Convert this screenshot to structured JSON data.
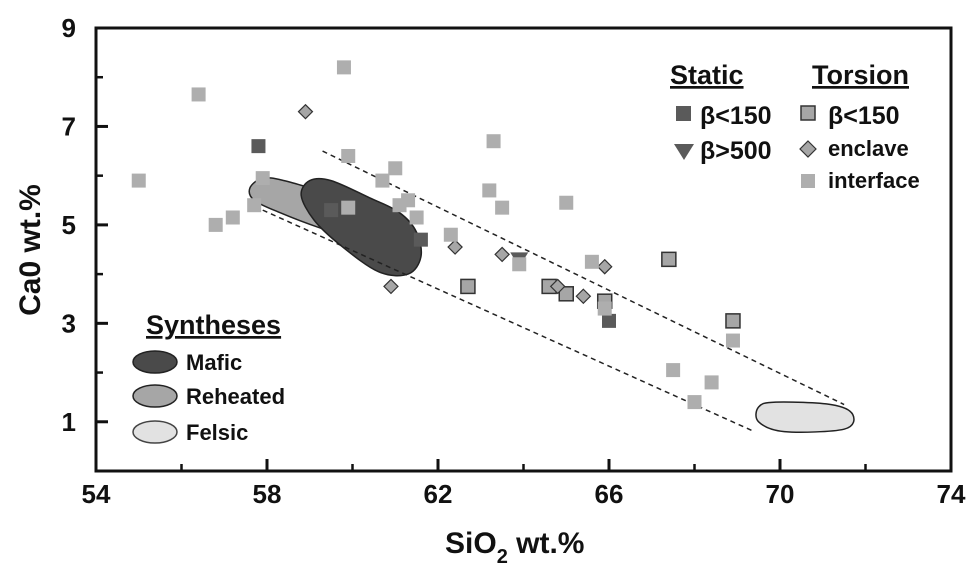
{
  "chart_data": {
    "type": "scatter",
    "xlabel_main": "SiO",
    "xlabel_sub": "2",
    "xlabel_tail": " wt.%",
    "ylabel": "Ca0 wt.%",
    "xlim": [
      54,
      74
    ],
    "ylim": [
      0,
      9
    ],
    "x_tick_labels": [
      "54",
      "58",
      "62",
      "66",
      "70",
      "74"
    ],
    "x_tick_values": [
      54,
      58,
      62,
      66,
      70,
      74
    ],
    "y_tick_labels": [
      "1",
      "3",
      "5",
      "7",
      "9"
    ],
    "y_tick_values": [
      1,
      3,
      5,
      7,
      9
    ],
    "x_minor_ticks": [
      56,
      60,
      64,
      68,
      72
    ],
    "y_minor_ticks": [
      2,
      4,
      6,
      8
    ],
    "grid": false,
    "series": [
      {
        "name": "Static β<150",
        "marker": "square",
        "color": "#5a5a5a",
        "points": [
          [
            57.8,
            6.6
          ],
          [
            59.5,
            5.3
          ],
          [
            61.6,
            4.7
          ],
          [
            66.0,
            3.05
          ]
        ]
      },
      {
        "name": "Static β>500",
        "marker": "triangle-down",
        "color": "#5a5a5a",
        "points": [
          [
            63.9,
            4.3
          ]
        ]
      },
      {
        "name": "Torsion β<150",
        "marker": "square-outlined",
        "color": "#a6a6a6",
        "points": [
          [
            62.7,
            3.75
          ],
          [
            64.6,
            3.75
          ],
          [
            65.0,
            3.6
          ],
          [
            65.9,
            3.45
          ],
          [
            67.4,
            4.3
          ],
          [
            68.9,
            3.05
          ]
        ]
      },
      {
        "name": "Torsion enclave",
        "marker": "diamond",
        "color": "#a6a6a6",
        "points": [
          [
            58.9,
            7.3
          ],
          [
            60.9,
            3.75
          ],
          [
            62.4,
            4.55
          ],
          [
            63.5,
            4.4
          ],
          [
            64.8,
            3.75
          ],
          [
            65.4,
            3.55
          ],
          [
            65.9,
            4.15
          ]
        ]
      },
      {
        "name": "Torsion interface",
        "marker": "square",
        "color": "#aeaeae",
        "points": [
          [
            55.0,
            5.9
          ],
          [
            56.4,
            7.65
          ],
          [
            56.8,
            5.0
          ],
          [
            57.2,
            5.15
          ],
          [
            57.7,
            5.4
          ],
          [
            57.9,
            5.95
          ],
          [
            59.8,
            8.2
          ],
          [
            59.9,
            6.4
          ],
          [
            59.9,
            5.35
          ],
          [
            60.7,
            5.9
          ],
          [
            61.0,
            6.15
          ],
          [
            61.1,
            5.4
          ],
          [
            61.3,
            5.5
          ],
          [
            61.5,
            5.15
          ],
          [
            62.3,
            4.8
          ],
          [
            63.2,
            5.7
          ],
          [
            63.3,
            6.7
          ],
          [
            63.5,
            5.35
          ],
          [
            63.9,
            4.2
          ],
          [
            65.0,
            5.45
          ],
          [
            65.6,
            4.25
          ],
          [
            65.9,
            3.3
          ],
          [
            67.5,
            2.05
          ],
          [
            68.0,
            1.4
          ],
          [
            68.4,
            1.8
          ],
          [
            68.9,
            2.65
          ]
        ]
      }
    ],
    "fields": [
      {
        "name": "Reheated",
        "color": "#a6a6a6",
        "polygon": [
          [
            57.6,
            5.75
          ],
          [
            57.9,
            5.95
          ],
          [
            58.4,
            5.9
          ],
          [
            59.2,
            5.7
          ],
          [
            60.2,
            5.45
          ],
          [
            60.9,
            5.15
          ],
          [
            61.3,
            4.9
          ],
          [
            61.0,
            4.7
          ],
          [
            60.2,
            4.7
          ],
          [
            59.2,
            4.95
          ],
          [
            58.3,
            5.25
          ],
          [
            57.7,
            5.5
          ]
        ]
      },
      {
        "name": "Mafic",
        "color": "#4a4a4a",
        "polygon": [
          [
            59.0,
            5.9
          ],
          [
            59.5,
            5.9
          ],
          [
            60.4,
            5.55
          ],
          [
            61.1,
            5.25
          ],
          [
            61.5,
            4.85
          ],
          [
            61.6,
            4.35
          ],
          [
            61.3,
            4.0
          ],
          [
            60.6,
            4.05
          ],
          [
            59.7,
            4.6
          ],
          [
            59.1,
            5.1
          ],
          [
            58.8,
            5.6
          ]
        ]
      },
      {
        "name": "Felsic",
        "color": "#e2e2e2",
        "polygon": [
          [
            69.5,
            1.3
          ],
          [
            69.9,
            1.4
          ],
          [
            71.2,
            1.35
          ],
          [
            71.7,
            1.15
          ],
          [
            71.5,
            0.85
          ],
          [
            70.1,
            0.8
          ],
          [
            69.5,
            1.0
          ]
        ]
      }
    ],
    "dashed_lines": [
      [
        [
          59.3,
          6.5
        ],
        [
          71.5,
          1.35
        ]
      ],
      [
        [
          57.9,
          5.3
        ],
        [
          69.4,
          0.8
        ]
      ]
    ],
    "legend_static": {
      "title": "Static",
      "items": [
        {
          "label": "β<150",
          "marker": "square",
          "color": "#5a5a5a"
        },
        {
          "label": "β>500",
          "marker": "triangle-down",
          "color": "#5a5a5a"
        }
      ]
    },
    "legend_torsion": {
      "title": "Torsion",
      "items": [
        {
          "label": "β<150",
          "marker": "square-outlined",
          "color": "#a6a6a6"
        },
        {
          "label": "enclave",
          "marker": "diamond",
          "color": "#a6a6a6"
        },
        {
          "label": "interface",
          "marker": "square",
          "color": "#aeaeae"
        }
      ]
    },
    "legend_syntheses": {
      "title": "Syntheses",
      "items": [
        {
          "label": "Mafic",
          "color": "#4a4a4a"
        },
        {
          "label": "Reheated",
          "color": "#a6a6a6"
        },
        {
          "label": "Felsic",
          "color": "#e2e2e2"
        }
      ]
    }
  }
}
